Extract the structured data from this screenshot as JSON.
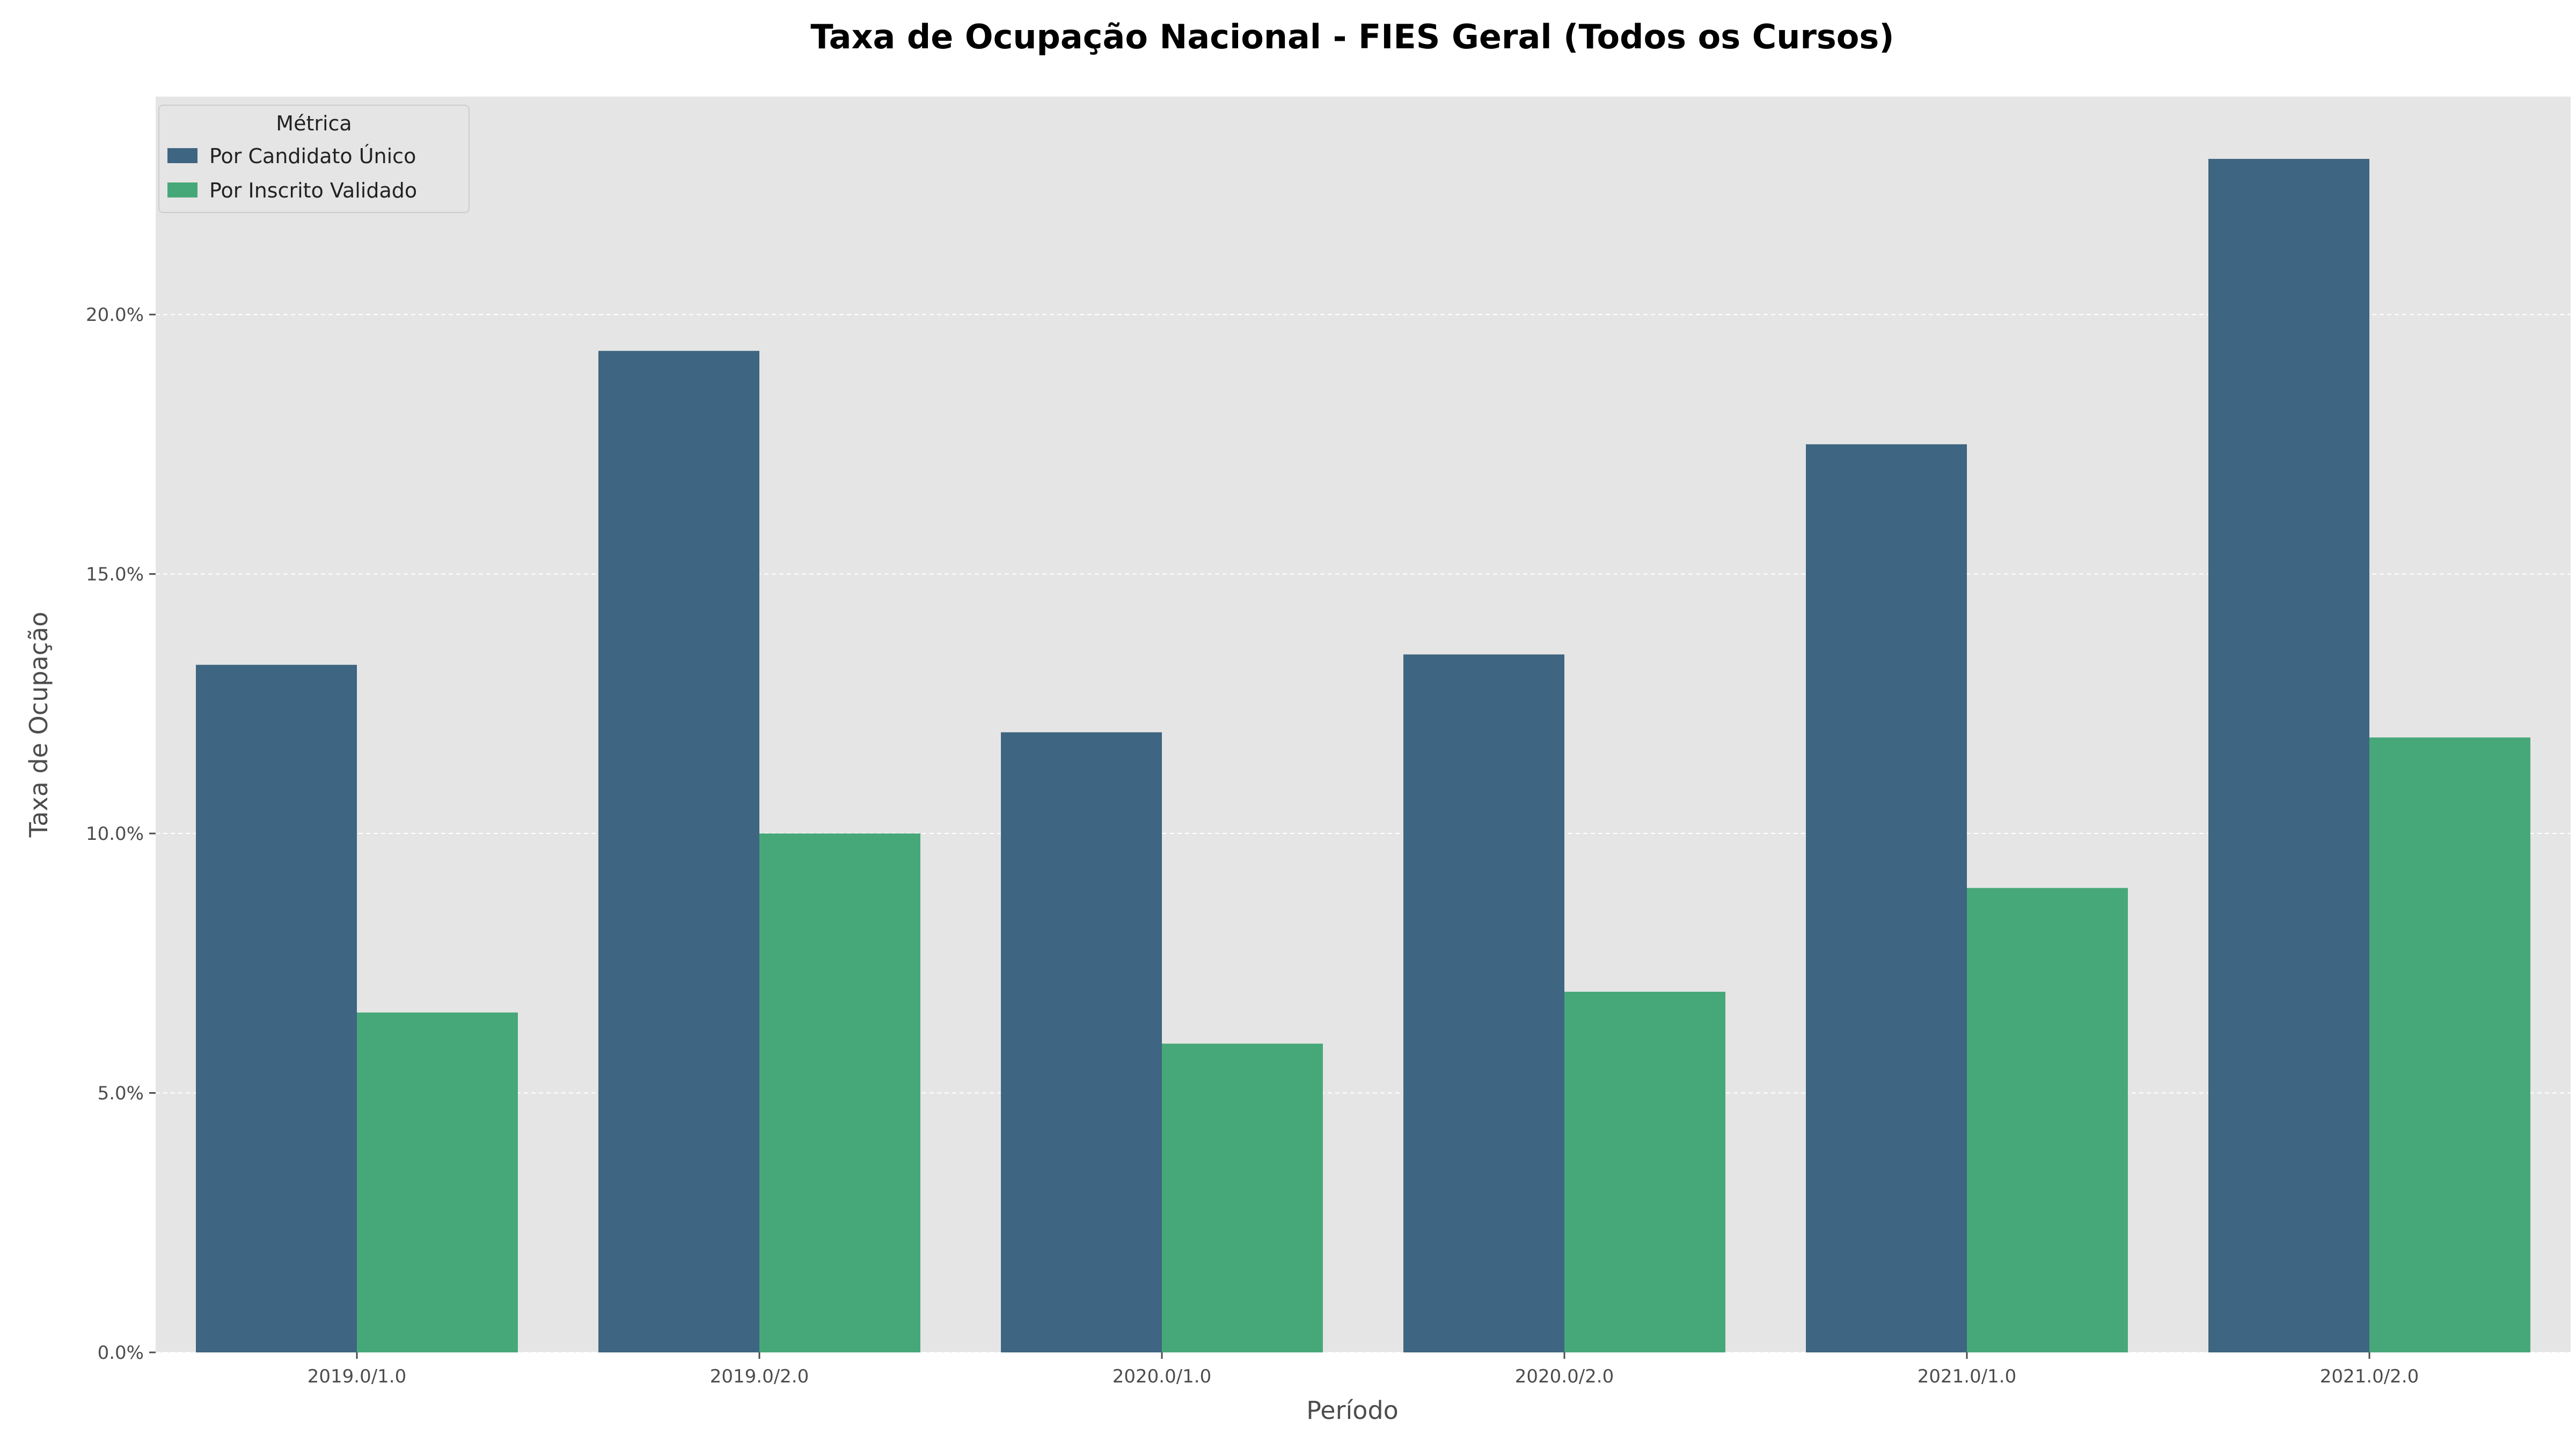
{
  "chart_data": {
    "type": "bar",
    "title": "Taxa de Ocupação Nacional - FIES Geral (Todos os Cursos)",
    "xlabel": "Período",
    "ylabel": "Taxa de Ocupação",
    "categories": [
      "2019.0/1.0",
      "2019.0/2.0",
      "2020.0/1.0",
      "2020.0/2.0",
      "2021.0/1.0",
      "2021.0/2.0"
    ],
    "series": [
      {
        "name": "Por Candidato Único",
        "color": "#3e6581",
        "values": [
          13.25,
          19.3,
          11.95,
          13.45,
          17.5,
          23.0
        ]
      },
      {
        "name": "Por Inscrito Validado",
        "color": "#46a878",
        "values": [
          6.55,
          10.0,
          5.95,
          6.95,
          8.95,
          11.85
        ]
      }
    ],
    "ylim": [
      0,
      24.2
    ],
    "yticks": [
      0,
      5,
      10,
      15,
      20
    ],
    "ytick_labels": [
      "0.0%",
      "5.0%",
      "10.0%",
      "15.0%",
      "20.0%"
    ],
    "grid": true,
    "plot_background": "#e5e5e5",
    "legend": {
      "title": "Métrica",
      "placement": "top-left"
    }
  }
}
